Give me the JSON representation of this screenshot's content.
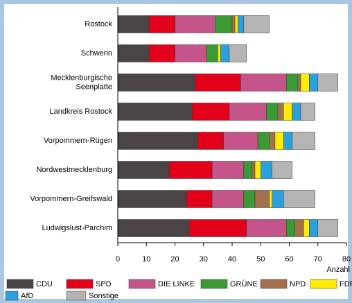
{
  "chart_data": {
    "type": "stacked-bar-horizontal",
    "categories": [
      "Rostock",
      "Schwerin",
      "Mecklenburgische\nSeenplatte",
      "Landkreis Rostock",
      "Vorpommern-Rügen",
      "Nordwestmecklenburg",
      "Vorpommern-Greifswald",
      "Ludwigslust-Parchim"
    ],
    "series": [
      {
        "name": "CDU",
        "color": "#4a4444",
        "values": [
          11,
          11,
          27,
          26,
          28,
          18,
          24,
          25
        ]
      },
      {
        "name": "SPD",
        "color": "#e3001b",
        "values": [
          9,
          9,
          16,
          13,
          9,
          15,
          9,
          20
        ]
      },
      {
        "name": "DIE LINKE",
        "color": "#c4548a",
        "values": [
          14,
          11,
          16,
          13,
          12,
          11,
          11,
          14
        ]
      },
      {
        "name": "GRÜNE",
        "color": "#3c9a34",
        "values": [
          6,
          4,
          4,
          4,
          4,
          3,
          4,
          3
        ]
      },
      {
        "name": "NPD",
        "color": "#a2704c",
        "values": [
          1,
          0,
          1,
          2,
          2,
          1,
          5,
          3
        ]
      },
      {
        "name": "FDP",
        "color": "#ffec00",
        "values": [
          1,
          1,
          3,
          3,
          3,
          2,
          1,
          2
        ]
      },
      {
        "name": "AfD",
        "color": "#2aa0dc",
        "values": [
          2,
          3,
          3,
          3,
          3,
          4,
          4,
          3
        ]
      },
      {
        "name": "Sonstige",
        "color": "#b4b4b4",
        "values": [
          9,
          6,
          7,
          5,
          8,
          7,
          11,
          7
        ]
      }
    ],
    "xlabel": "Anzahl",
    "xlim": [
      0,
      80
    ],
    "xticks": [
      0,
      10,
      20,
      30,
      40,
      50,
      60,
      70,
      80
    ]
  }
}
